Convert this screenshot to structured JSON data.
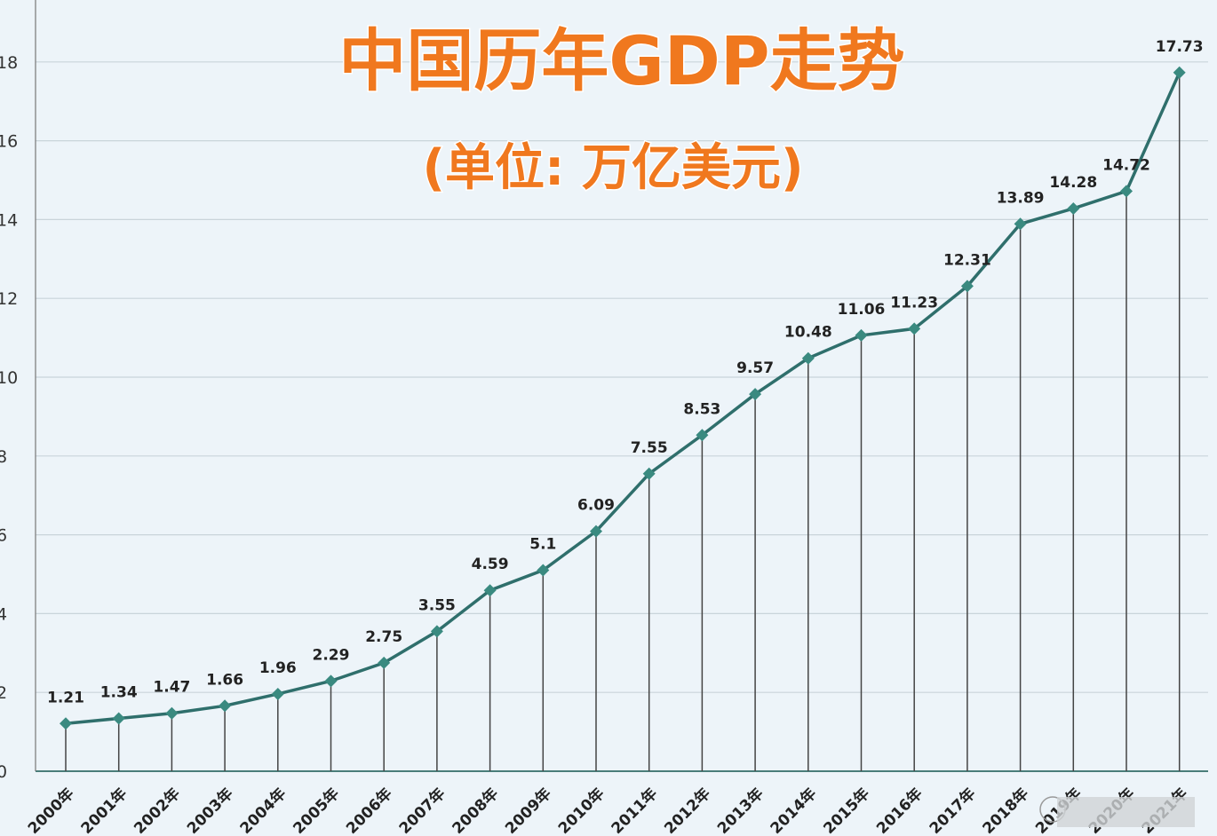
{
  "chart_data": {
    "type": "line",
    "title": "中国历年GDP走势",
    "subtitle": "(单位: 万亿美元)",
    "categories": [
      "2000年",
      "2001年",
      "2002年",
      "2003年",
      "2004年",
      "2005年",
      "2006年",
      "2007年",
      "2008年",
      "2009年",
      "2010年",
      "2011年",
      "2012年",
      "2013年",
      "2014年",
      "2015年",
      "2016年",
      "2017年",
      "2018年",
      "2019年",
      "2020年",
      "2021年"
    ],
    "values": [
      1.21,
      1.34,
      1.47,
      1.66,
      1.96,
      2.29,
      2.75,
      3.55,
      4.59,
      5.1,
      6.09,
      7.55,
      8.53,
      9.57,
      10.48,
      11.06,
      11.23,
      12.31,
      13.89,
      14.28,
      14.72,
      17.73
    ],
    "data_labels": [
      "1.21",
      "1.34",
      "1.47",
      "1.66",
      "1.96",
      "2.29",
      "2.75",
      "3.55",
      "4.59",
      "5.1",
      "6.09",
      "7.55",
      "8.53",
      "9.57",
      "10.48",
      "11.06",
      "11.23",
      "12.31",
      "13.89",
      "14.28",
      "14.72",
      "17.73"
    ],
    "yticks": [
      "0",
      "2",
      "4",
      "6",
      "8",
      "10",
      "12",
      "14",
      "16",
      "18"
    ],
    "ylim": [
      0,
      19.5
    ],
    "grid": "horizontal",
    "drop_lines": true,
    "xlabel": "",
    "ylabel": "",
    "colors": {
      "line": "#2f6f6c",
      "marker": "#3a8a80",
      "title": "#f0781e",
      "background": "#edf4f9",
      "grid": "#c9d4da"
    }
  }
}
